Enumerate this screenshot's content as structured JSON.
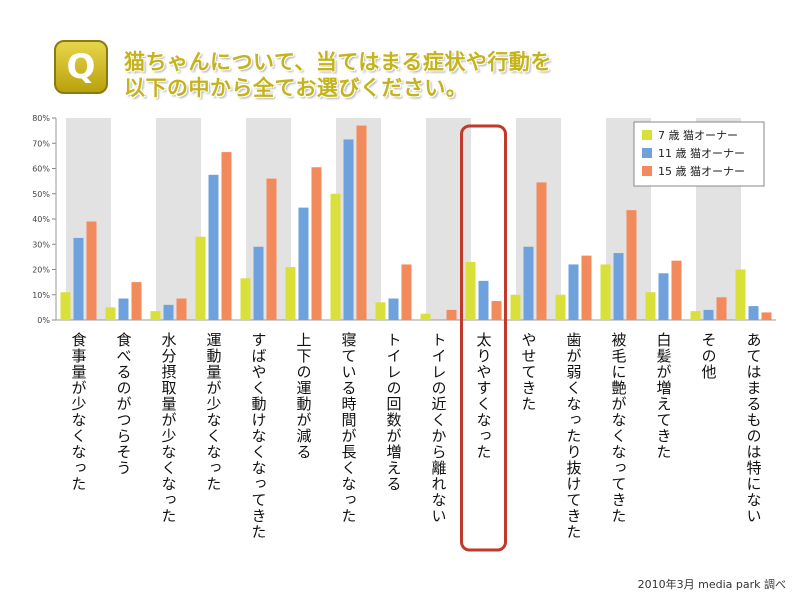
{
  "question": {
    "badge": "Q",
    "line1": "猫ちゃんについて、当てはまる症状や行動を",
    "line2": "以下の中から全てお選びください。"
  },
  "source": "2010年3月 media park 調べ",
  "colors": {
    "series1": "#d9e03a",
    "series2": "#6fa1dc",
    "series3": "#f28a5c",
    "stripe": "#e2e2e2",
    "highlight": "#c0392b"
  },
  "chart_data": {
    "type": "bar",
    "categories": [
      "食事量が少なくなった",
      "食べるのがつらそう",
      "水分摂取量が少なくなった",
      "運動量が少なくなった",
      "すばやく動けなくなってきた",
      "上下の運動が減る",
      "寝ている時間が長くなった",
      "トイレの回数が増える",
      "トイレの近くから離れない",
      "太りやすくなった",
      "やせてきた",
      "歯が弱くなったり抜けてきた",
      "被毛に艶がなくなってきた",
      "白髪が増えてきた",
      "その他",
      "あてはまるものは特にない"
    ],
    "series": [
      {
        "name": "7 歳 猫オーナー",
        "values": [
          11,
          5,
          3.5,
          33,
          16.5,
          21,
          50,
          7,
          2.5,
          23,
          10,
          10,
          22,
          11,
          3.5,
          20
        ]
      },
      {
        "name": "11 歳 猫オーナー",
        "values": [
          32.5,
          8.5,
          6,
          57.5,
          29,
          44.5,
          71.5,
          8.5,
          0,
          15.5,
          29,
          22,
          26.5,
          18.5,
          4,
          5.5
        ]
      },
      {
        "name": "15 歳 猫オーナー",
        "values": [
          39,
          15,
          8.5,
          66.5,
          56,
          60.5,
          77,
          22,
          4,
          7.5,
          54.5,
          25.5,
          43.5,
          23.5,
          9,
          3
        ]
      }
    ],
    "yticks": [
      "0%",
      "10%",
      "20%",
      "30%",
      "40%",
      "50%",
      "60%",
      "70%",
      "80%"
    ],
    "ylim": [
      0,
      80
    ],
    "highlighted_category": "太りやすくなった",
    "legend_position": "top-right",
    "grid": false
  }
}
